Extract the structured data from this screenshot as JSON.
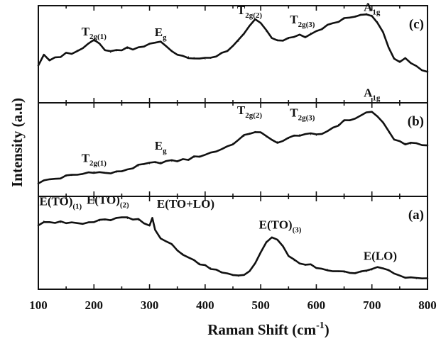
{
  "figure": {
    "xlabel": "Raman Shift (cm",
    "xlabel_sup": "-1",
    "xlabel_close": ")",
    "ylabel": "Intensity (a.u)"
  },
  "chart_data": {
    "type": "line",
    "xlim": [
      100,
      800
    ],
    "x_ticks": [
      100,
      200,
      300,
      400,
      500,
      600,
      700,
      800
    ],
    "y_ticks_shown": false,
    "panels": [
      {
        "tag": "(c)",
        "ylim": [
          0,
          1
        ],
        "x": [
          100,
          110,
          120,
          130,
          140,
          150,
          160,
          170,
          180,
          190,
          200,
          210,
          220,
          230,
          240,
          250,
          260,
          270,
          280,
          290,
          300,
          310,
          320,
          330,
          340,
          350,
          360,
          370,
          380,
          390,
          400,
          410,
          420,
          430,
          440,
          450,
          460,
          470,
          480,
          490,
          500,
          510,
          520,
          530,
          540,
          550,
          560,
          570,
          580,
          590,
          600,
          610,
          620,
          630,
          640,
          650,
          660,
          670,
          680,
          690,
          700,
          710,
          720,
          730,
          740,
          750,
          760,
          770,
          780,
          790,
          800
        ],
        "values": [
          0.38,
          0.48,
          0.44,
          0.46,
          0.47,
          0.52,
          0.5,
          0.55,
          0.58,
          0.63,
          0.66,
          0.62,
          0.56,
          0.52,
          0.54,
          0.55,
          0.57,
          0.56,
          0.58,
          0.6,
          0.62,
          0.64,
          0.65,
          0.6,
          0.55,
          0.5,
          0.48,
          0.47,
          0.46,
          0.45,
          0.44,
          0.45,
          0.48,
          0.52,
          0.55,
          0.6,
          0.66,
          0.74,
          0.85,
          0.92,
          0.88,
          0.78,
          0.7,
          0.68,
          0.66,
          0.69,
          0.72,
          0.74,
          0.72,
          0.76,
          0.79,
          0.82,
          0.85,
          0.88,
          0.9,
          0.93,
          0.95,
          0.97,
          0.99,
          1.0,
          0.98,
          0.9,
          0.76,
          0.6,
          0.46,
          0.42,
          0.45,
          0.4,
          0.36,
          0.31,
          0.29
        ],
        "annotations": [
          {
            "main": "T",
            "sub": "2g(1)",
            "x": 200,
            "y": 0.73
          },
          {
            "main": "E",
            "sub": "g",
            "x": 320,
            "y": 0.72
          },
          {
            "main": "T",
            "sub": "2g(2)",
            "x": 480,
            "y": 0.99
          },
          {
            "main": "T",
            "sub": "2g(3)",
            "x": 575,
            "y": 0.88
          },
          {
            "main": "A",
            "sub": "1g",
            "x": 700,
            "y": 1.03
          }
        ]
      },
      {
        "tag": "(b)",
        "ylim": [
          0,
          1
        ],
        "x": [
          100,
          110,
          120,
          130,
          140,
          150,
          160,
          170,
          180,
          190,
          200,
          210,
          220,
          230,
          240,
          250,
          260,
          270,
          280,
          290,
          300,
          310,
          320,
          330,
          340,
          350,
          360,
          370,
          380,
          390,
          400,
          410,
          420,
          430,
          440,
          450,
          460,
          470,
          480,
          490,
          500,
          510,
          520,
          530,
          540,
          550,
          560,
          570,
          580,
          590,
          600,
          610,
          620,
          630,
          640,
          650,
          660,
          670,
          680,
          690,
          700,
          710,
          720,
          730,
          740,
          750,
          760,
          770,
          780,
          790,
          800
        ],
        "values": [
          0.08,
          0.1,
          0.12,
          0.13,
          0.14,
          0.16,
          0.17,
          0.18,
          0.19,
          0.21,
          0.22,
          0.21,
          0.2,
          0.2,
          0.21,
          0.23,
          0.25,
          0.27,
          0.29,
          0.31,
          0.32,
          0.33,
          0.34,
          0.35,
          0.35,
          0.36,
          0.37,
          0.38,
          0.4,
          0.42,
          0.44,
          0.46,
          0.48,
          0.51,
          0.54,
          0.58,
          0.62,
          0.67,
          0.71,
          0.73,
          0.71,
          0.66,
          0.62,
          0.6,
          0.61,
          0.64,
          0.67,
          0.69,
          0.7,
          0.69,
          0.68,
          0.7,
          0.74,
          0.78,
          0.82,
          0.86,
          0.88,
          0.9,
          0.93,
          0.97,
          0.98,
          0.93,
          0.83,
          0.72,
          0.64,
          0.6,
          0.58,
          0.57,
          0.58,
          0.56,
          0.55
        ],
        "annotations": [
          {
            "main": "T",
            "sub": "2g(1)",
            "x": 200,
            "y": 0.34
          },
          {
            "main": "E",
            "sub": "g",
            "x": 320,
            "y": 0.5
          },
          {
            "main": "T",
            "sub": "2g(2)",
            "x": 480,
            "y": 0.95
          },
          {
            "main": "T",
            "sub": "2g(3)",
            "x": 575,
            "y": 0.92
          },
          {
            "main": "A",
            "sub": "1g",
            "x": 700,
            "y": 1.17
          }
        ]
      },
      {
        "tag": "(a)",
        "ylim": [
          0,
          1
        ],
        "x": [
          100,
          110,
          120,
          130,
          140,
          150,
          160,
          170,
          180,
          190,
          200,
          210,
          220,
          230,
          240,
          250,
          260,
          270,
          280,
          290,
          300,
          305,
          310,
          320,
          330,
          340,
          350,
          360,
          370,
          380,
          390,
          400,
          410,
          420,
          430,
          440,
          450,
          460,
          470,
          480,
          490,
          500,
          510,
          520,
          530,
          540,
          550,
          560,
          570,
          580,
          590,
          600,
          610,
          620,
          630,
          640,
          650,
          660,
          670,
          680,
          690,
          700,
          710,
          720,
          730,
          740,
          750,
          760,
          770,
          780,
          790,
          800
        ],
        "values": [
          0.74,
          0.78,
          0.77,
          0.76,
          0.76,
          0.75,
          0.76,
          0.75,
          0.74,
          0.76,
          0.77,
          0.78,
          0.79,
          0.8,
          0.81,
          0.82,
          0.81,
          0.8,
          0.79,
          0.75,
          0.72,
          0.82,
          0.68,
          0.57,
          0.52,
          0.47,
          0.4,
          0.36,
          0.31,
          0.27,
          0.24,
          0.21,
          0.18,
          0.16,
          0.13,
          0.1,
          0.08,
          0.07,
          0.09,
          0.14,
          0.24,
          0.38,
          0.52,
          0.57,
          0.54,
          0.44,
          0.34,
          0.27,
          0.23,
          0.21,
          0.22,
          0.18,
          0.17,
          0.16,
          0.14,
          0.13,
          0.12,
          0.11,
          0.12,
          0.12,
          0.13,
          0.15,
          0.19,
          0.18,
          0.14,
          0.1,
          0.08,
          0.06,
          0.05,
          0.04,
          0.04,
          0.04
        ],
        "annotations": [
          {
            "main": "E(TO)",
            "sub": "(1)",
            "x": 140,
            "y": 0.98
          },
          {
            "main": "E(TO)",
            "sub": "(2)",
            "x": 225,
            "y": 1.0
          },
          {
            "main": "E(TO+LO)",
            "sub": "",
            "x": 365,
            "y": 0.95
          },
          {
            "main": "E(TO)",
            "sub": "(3)",
            "x": 535,
            "y": 0.68
          },
          {
            "main": "E(LO)",
            "sub": "",
            "x": 715,
            "y": 0.28
          }
        ]
      }
    ]
  }
}
